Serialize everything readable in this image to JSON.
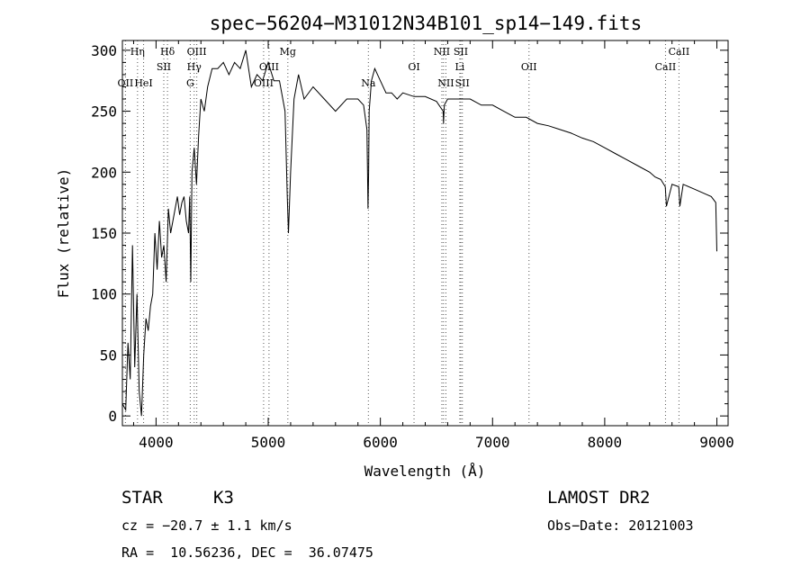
{
  "chart_data": {
    "type": "line",
    "title": "spec−56204−M31012N34B101_sp14−149.fits",
    "xlabel": "Wavelength (Å)",
    "ylabel": "Flux (relative)",
    "xlim": [
      3700,
      9100
    ],
    "ylim": [
      -8,
      308
    ],
    "xticks": [
      4000,
      5000,
      6000,
      7000,
      8000,
      9000
    ],
    "yticks": [
      0,
      50,
      100,
      150,
      200,
      250,
      300
    ],
    "grid": false,
    "line_color": "#000000",
    "series": [
      {
        "x": [
          3700,
          3730,
          3750,
          3770,
          3790,
          3810,
          3830,
          3850,
          3870,
          3890,
          3910,
          3930,
          3950,
          3970,
          3990,
          4010,
          4030,
          4050,
          4070,
          4090,
          4110,
          4130,
          4150,
          4170,
          4190,
          4210,
          4230,
          4250,
          4270,
          4290,
          4300,
          4310,
          4320,
          4340,
          4360,
          4380,
          4400,
          4430,
          4460,
          4500,
          4550,
          4600,
          4650,
          4700,
          4750,
          4800,
          4850,
          4900,
          4950,
          5000,
          5050,
          5100,
          5150,
          5170,
          5180,
          5200,
          5230,
          5270,
          5320,
          5400,
          5500,
          5600,
          5700,
          5800,
          5850,
          5880,
          5890,
          5895,
          5900,
          5920,
          5950,
          6000,
          6050,
          6100,
          6150,
          6200,
          6300,
          6400,
          6500,
          6560,
          6563,
          6570,
          6600,
          6700,
          6800,
          6900,
          7000,
          7100,
          7200,
          7300,
          7400,
          7500,
          7600,
          7700,
          7800,
          7900,
          8000,
          8100,
          8200,
          8300,
          8400,
          8450,
          8500,
          8540,
          8550,
          8600,
          8660,
          8670,
          8700,
          8800,
          8900,
          8950,
          8990,
          9000
        ],
        "values": [
          10,
          5,
          60,
          30,
          140,
          40,
          100,
          20,
          0,
          50,
          80,
          70,
          90,
          100,
          150,
          120,
          160,
          130,
          140,
          110,
          170,
          150,
          160,
          170,
          180,
          165,
          175,
          180,
          160,
          150,
          180,
          110,
          200,
          220,
          190,
          230,
          260,
          250,
          270,
          285,
          285,
          290,
          280,
          290,
          285,
          300,
          270,
          280,
          275,
          290,
          275,
          275,
          250,
          180,
          150,
          200,
          260,
          280,
          260,
          270,
          260,
          250,
          260,
          260,
          255,
          235,
          170,
          200,
          250,
          275,
          285,
          275,
          265,
          265,
          260,
          265,
          262,
          262,
          258,
          250,
          240,
          255,
          260,
          260,
          260,
          255,
          255,
          250,
          245,
          245,
          240,
          238,
          235,
          232,
          228,
          225,
          220,
          215,
          210,
          205,
          200,
          196,
          194,
          188,
          172,
          190,
          188,
          172,
          190,
          186,
          182,
          180,
          175,
          135
        ]
      }
    ],
    "lines": [
      {
        "name": "Hη",
        "x": 3835,
        "row": 0
      },
      {
        "name": "OII",
        "x": 3727,
        "row": 2
      },
      {
        "name": "HeI",
        "x": 3889,
        "row": 2
      },
      {
        "name": "Hδ",
        "x": 4102,
        "row": 0
      },
      {
        "name": "SII",
        "x": 4069,
        "row": 1
      },
      {
        "name": "OIII",
        "x": 4363,
        "row": 0
      },
      {
        "name": "Hγ",
        "x": 4340,
        "row": 1
      },
      {
        "name": "G",
        "x": 4305,
        "row": 2
      },
      {
        "name": "Mg",
        "x": 5175,
        "row": 0
      },
      {
        "name": "OIII",
        "x": 5007,
        "row": 1
      },
      {
        "name": "OIII",
        "x": 4959,
        "row": 2
      },
      {
        "name": "Na",
        "x": 5893,
        "row": 2
      },
      {
        "name": "OI",
        "x": 6300,
        "row": 1
      },
      {
        "name": "NII",
        "x": 6548,
        "row": 0
      },
      {
        "name": "SII",
        "x": 6717,
        "row": 0
      },
      {
        "name": "Li",
        "x": 6708,
        "row": 1
      },
      {
        "name": "NII",
        "x": 6584,
        "row": 2
      },
      {
        "name": "SII",
        "x": 6731,
        "row": 2
      },
      {
        "name": "OII",
        "x": 7325,
        "row": 1
      },
      {
        "name": "CaII",
        "x": 8662,
        "row": 0
      },
      {
        "name": "CaII",
        "x": 8542,
        "row": 1
      }
    ],
    "line_marks": [
      3727,
      3835,
      3889,
      4069,
      4102,
      4305,
      4340,
      4363,
      4959,
      5007,
      5175,
      5893,
      6300,
      6548,
      6563,
      6584,
      6708,
      6717,
      6731,
      7325,
      8542,
      8662
    ]
  },
  "info": {
    "class": "STAR",
    "subclass": "K3",
    "survey": "LAMOST DR2",
    "cz": "cz = −20.7 ± 1.1 km/s",
    "obs_date": "Obs−Date: 20121003",
    "coords": "RA =  10.56236, DEC =  36.07475"
  }
}
